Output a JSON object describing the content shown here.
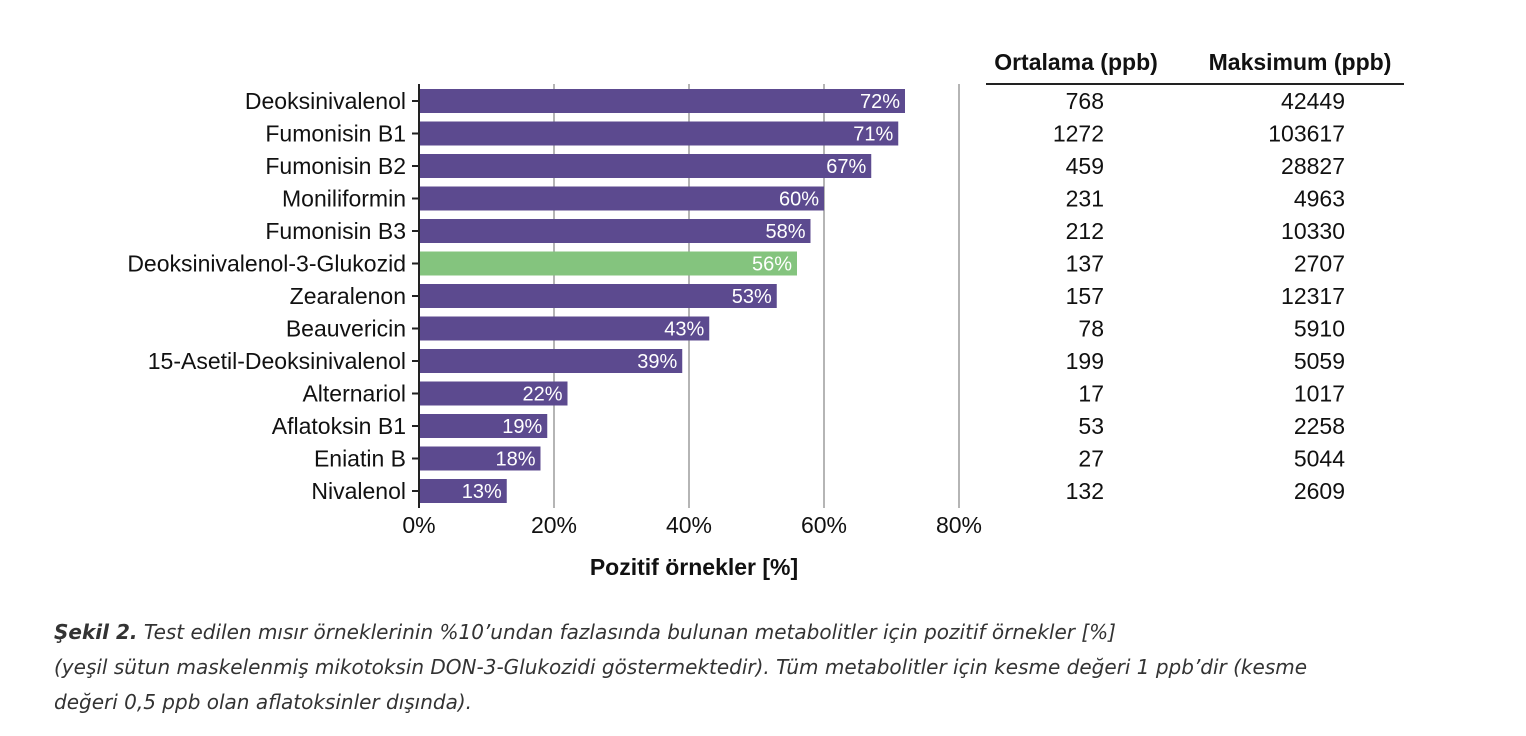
{
  "chart_data": {
    "type": "bar",
    "orientation": "horizontal",
    "categories": [
      "Deoksinivalenol",
      "Fumonisin B1",
      "Fumonisin B2",
      "Moniliformin",
      "Fumonisin B3",
      "Deoksinivalenol-3-Glukozid",
      "Zearalenon",
      "Beauvericin",
      "15-Asetil-Deoksinivalenol",
      "Alternariol",
      "Aflatoksin B1",
      "Eniatin B",
      "Nivalenol"
    ],
    "values": [
      72,
      71,
      67,
      60,
      58,
      56,
      53,
      43,
      39,
      22,
      19,
      18,
      13
    ],
    "value_labels": [
      "72%",
      "71%",
      "67%",
      "60%",
      "58%",
      "56%",
      "53%",
      "43%",
      "39%",
      "22%",
      "19%",
      "18%",
      "13%"
    ],
    "highlight_index": 5,
    "xlabel": "Pozitif örnekler [%]",
    "ylabel": "",
    "xlim": [
      0,
      80
    ],
    "xticks": [
      0,
      20,
      40,
      60,
      80
    ],
    "xtick_labels": [
      "0%",
      "20%",
      "40%",
      "60%",
      "80%"
    ],
    "grid": true,
    "colors": {
      "bar": "#5c4a8f",
      "highlight": "#84c47e",
      "grid": "#b5b5b5"
    },
    "table": {
      "headers": [
        "Ortalama (ppb)",
        "Maksimum (ppb)"
      ],
      "ortalama": [
        "768",
        "1272",
        "459",
        "231",
        "212",
        "137",
        "157",
        "78",
        "199",
        "17",
        "53",
        "27",
        "132"
      ],
      "maksimum": [
        "42449",
        "103617",
        "28827",
        "4963",
        "10330",
        "2707",
        "12317",
        "5910",
        "5059",
        "1017",
        "2258",
        "5044",
        "2609"
      ]
    }
  },
  "caption": {
    "lead": "Şekil 2.",
    "line1": "Test edilen mısır örneklerinin %10’undan fazlasında bulunan metabolitler için pozitif örnekler [%]",
    "line2": "(yeşil sütun maskelenmiş mikotoksin DON-3-Glukozidi göstermektedir). Tüm metabolitler için kesme değeri 1 ppb’dir (kesme",
    "line3": "değeri 0,5 ppb olan aflatoksinler dışında)."
  }
}
